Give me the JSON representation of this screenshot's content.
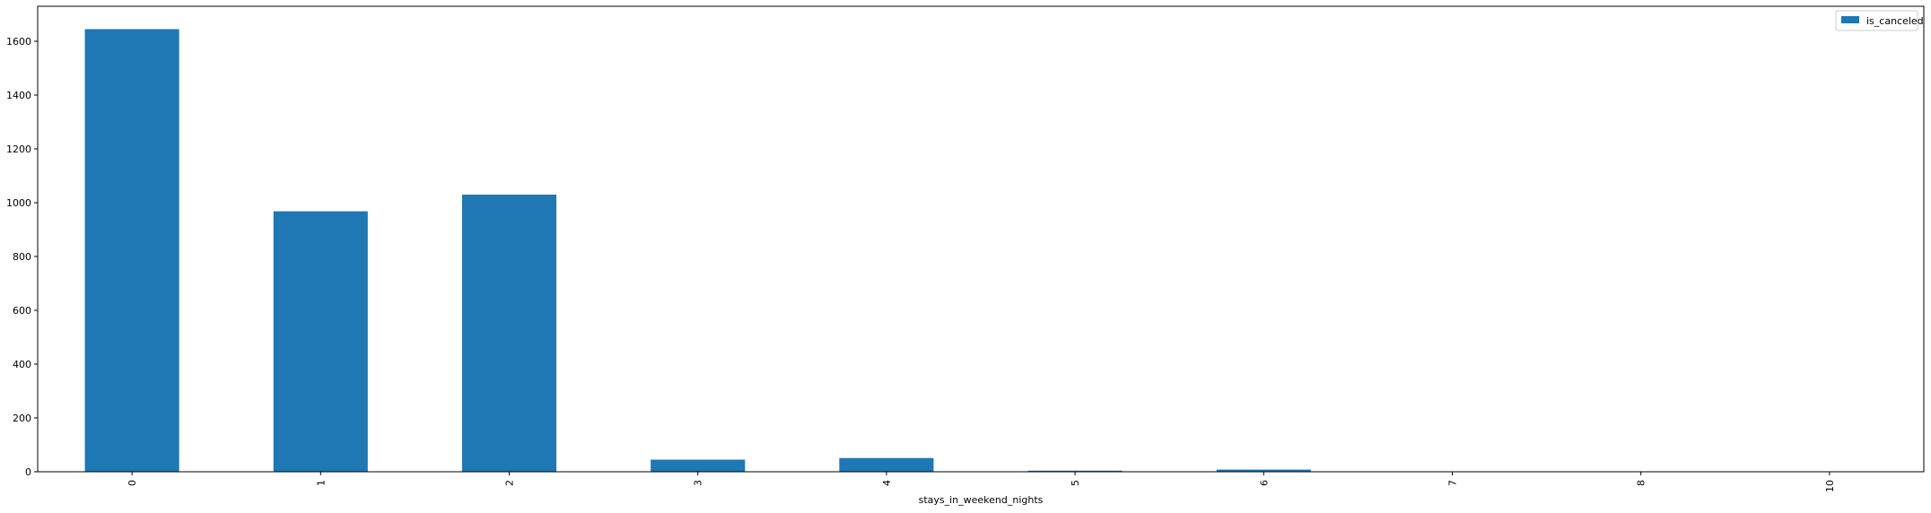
{
  "chart_data": {
    "type": "bar",
    "categories": [
      "0",
      "1",
      "2",
      "3",
      "4",
      "5",
      "6",
      "7",
      "8",
      "10"
    ],
    "series": [
      {
        "name": "is_canceled",
        "values": [
          1645,
          968,
          1030,
          45,
          51,
          4,
          8,
          0,
          0,
          1
        ],
        "color": "#1f77b4"
      }
    ],
    "title": "",
    "xlabel": "stays_in_weekend_nights",
    "ylabel": "",
    "ylim": [
      0,
      1730
    ],
    "yticks": [
      0,
      200,
      400,
      600,
      800,
      1000,
      1200,
      1400,
      1600
    ],
    "grid": false,
    "legend_position": "top-right"
  }
}
